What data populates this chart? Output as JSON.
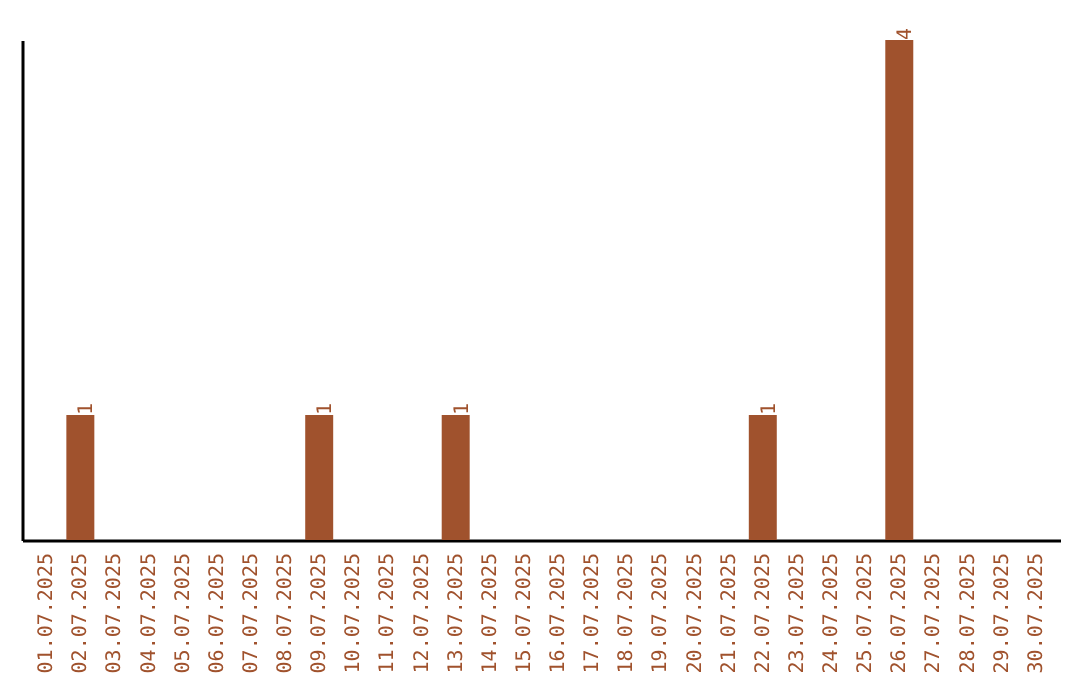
{
  "chart_data": {
    "type": "bar",
    "categories": [
      "01.07.2025",
      "02.07.2025",
      "03.07.2025",
      "04.07.2025",
      "05.07.2025",
      "06.07.2025",
      "07.07.2025",
      "08.07.2025",
      "09.07.2025",
      "10.07.2025",
      "11.07.2025",
      "12.07.2025",
      "13.07.2025",
      "14.07.2025",
      "15.07.2025",
      "16.07.2025",
      "17.07.2025",
      "18.07.2025",
      "19.07.2025",
      "20.07.2025",
      "21.07.2025",
      "22.07.2025",
      "23.07.2025",
      "24.07.2025",
      "25.07.2025",
      "26.07.2025",
      "27.07.2025",
      "28.07.2025",
      "29.07.2025",
      "30.07.2025"
    ],
    "values": [
      0,
      1,
      0,
      0,
      0,
      0,
      0,
      0,
      1,
      0,
      0,
      0,
      1,
      0,
      0,
      0,
      0,
      0,
      0,
      0,
      0,
      1,
      0,
      0,
      0,
      4,
      0,
      0,
      0,
      0
    ],
    "value_labels": [
      null,
      "1",
      null,
      null,
      null,
      null,
      null,
      null,
      "1",
      null,
      null,
      null,
      "1",
      null,
      null,
      null,
      null,
      null,
      null,
      null,
      null,
      "1",
      null,
      null,
      null,
      "4",
      null,
      null,
      null,
      null
    ],
    "color": "#a0522d",
    "grid": false
  }
}
